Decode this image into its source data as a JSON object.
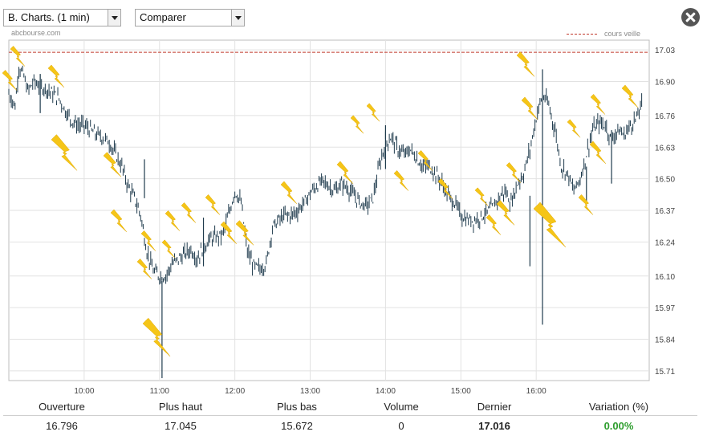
{
  "toolbar": {
    "chart_select": "B. Charts. (1 min)",
    "compare_select": "Comparer"
  },
  "brand": "abcbourse.com",
  "legend": {
    "label": "cours veille",
    "color": "#c0392b"
  },
  "colors": {
    "bars": "#1f3b4d",
    "grid": "#e2e2e2",
    "reference": "#c0392b",
    "variation": "#2e9d2e",
    "lightning": "#f5c518"
  },
  "chart_data": {
    "type": "bar",
    "subtype": "ohlc",
    "x_ticks": [
      "10:00",
      "11:00",
      "12:00",
      "13:00",
      "14:00",
      "15:00",
      "16:00"
    ],
    "y_ticks": [
      "17.03",
      "16.90",
      "16.76",
      "16.63",
      "16.50",
      "16.37",
      "16.24",
      "16.10",
      "15.97",
      "15.84",
      "15.71"
    ],
    "ylim": [
      15.67,
      17.07
    ],
    "xlim": [
      "09:00",
      "17:30"
    ],
    "reference_line": {
      "label": "cours veille",
      "value": 17.02
    },
    "series_points": [
      [
        "09:00",
        16.85
      ],
      [
        "09:05",
        16.8
      ],
      [
        "09:08",
        16.96
      ],
      [
        "09:12",
        16.92
      ],
      [
        "09:15",
        16.86
      ],
      [
        "09:20",
        16.9
      ],
      [
        "09:25",
        16.88
      ],
      [
        "09:30",
        16.87
      ],
      [
        "09:35",
        16.85
      ],
      [
        "09:40",
        16.83
      ],
      [
        "09:45",
        16.78
      ],
      [
        "09:50",
        16.74
      ],
      [
        "09:55",
        16.72
      ],
      [
        "10:00",
        16.72
      ],
      [
        "10:05",
        16.7
      ],
      [
        "10:10",
        16.68
      ],
      [
        "10:15",
        16.67
      ],
      [
        "10:20",
        16.65
      ],
      [
        "10:25",
        16.6
      ],
      [
        "10:30",
        16.55
      ],
      [
        "10:35",
        16.47
      ],
      [
        "10:40",
        16.42
      ],
      [
        "10:45",
        16.35
      ],
      [
        "10:50",
        16.2
      ],
      [
        "10:55",
        16.12
      ],
      [
        "11:00",
        16.1
      ],
      [
        "11:05",
        16.1
      ],
      [
        "11:10",
        16.15
      ],
      [
        "11:15",
        16.17
      ],
      [
        "11:20",
        16.19
      ],
      [
        "11:25",
        16.21
      ],
      [
        "11:30",
        16.17
      ],
      [
        "11:35",
        16.22
      ],
      [
        "11:40",
        16.25
      ],
      [
        "11:45",
        16.26
      ],
      [
        "11:50",
        16.27
      ],
      [
        "11:55",
        16.35
      ],
      [
        "12:00",
        16.45
      ],
      [
        "12:05",
        16.4
      ],
      [
        "12:10",
        16.2
      ],
      [
        "12:15",
        16.14
      ],
      [
        "12:20",
        16.13
      ],
      [
        "12:25",
        16.15
      ],
      [
        "12:30",
        16.3
      ],
      [
        "12:35",
        16.33
      ],
      [
        "12:40",
        16.35
      ],
      [
        "12:45",
        16.35
      ],
      [
        "12:50",
        16.37
      ],
      [
        "12:55",
        16.4
      ],
      [
        "13:00",
        16.44
      ],
      [
        "13:05",
        16.47
      ],
      [
        "13:10",
        16.49
      ],
      [
        "13:15",
        16.47
      ],
      [
        "13:20",
        16.45
      ],
      [
        "13:25",
        16.48
      ],
      [
        "13:30",
        16.46
      ],
      [
        "13:35",
        16.43
      ],
      [
        "13:40",
        16.4
      ],
      [
        "13:45",
        16.39
      ],
      [
        "13:50",
        16.42
      ],
      [
        "13:55",
        16.55
      ],
      [
        "14:00",
        16.65
      ],
      [
        "14:05",
        16.67
      ],
      [
        "14:10",
        16.62
      ],
      [
        "14:15",
        16.6
      ],
      [
        "14:20",
        16.62
      ],
      [
        "14:25",
        16.58
      ],
      [
        "14:30",
        16.55
      ],
      [
        "14:35",
        16.55
      ],
      [
        "14:40",
        16.52
      ],
      [
        "14:45",
        16.48
      ],
      [
        "14:50",
        16.43
      ],
      [
        "14:55",
        16.4
      ],
      [
        "15:00",
        16.35
      ],
      [
        "15:05",
        16.33
      ],
      [
        "15:10",
        16.33
      ],
      [
        "15:15",
        16.34
      ],
      [
        "15:20",
        16.36
      ],
      [
        "15:25",
        16.38
      ],
      [
        "15:30",
        16.42
      ],
      [
        "15:35",
        16.45
      ],
      [
        "15:40",
        16.4
      ],
      [
        "15:45",
        16.48
      ],
      [
        "15:50",
        16.52
      ],
      [
        "15:55",
        16.62
      ],
      [
        "16:00",
        16.75
      ],
      [
        "16:05",
        16.85
      ],
      [
        "16:10",
        16.8
      ],
      [
        "16:15",
        16.7
      ],
      [
        "16:20",
        16.55
      ],
      [
        "16:25",
        16.52
      ],
      [
        "16:30",
        16.45
      ],
      [
        "16:35",
        16.5
      ],
      [
        "16:40",
        16.6
      ],
      [
        "16:45",
        16.7
      ],
      [
        "16:50",
        16.73
      ],
      [
        "16:55",
        16.72
      ],
      [
        "17:00",
        16.66
      ],
      [
        "17:05",
        16.7
      ],
      [
        "17:10",
        16.68
      ],
      [
        "17:15",
        16.72
      ],
      [
        "17:20",
        16.75
      ],
      [
        "17:25",
        16.82
      ]
    ]
  },
  "stats": {
    "labels": {
      "open": "Ouverture",
      "high": "Plus haut",
      "low": "Plus bas",
      "volume": "Volume",
      "last": "Dernier",
      "variation": "Variation (%)"
    },
    "values": {
      "open": "16.796",
      "high": "17.045",
      "low": "15.672",
      "volume": "0",
      "last": "17.016",
      "variation": "0.00%"
    }
  }
}
